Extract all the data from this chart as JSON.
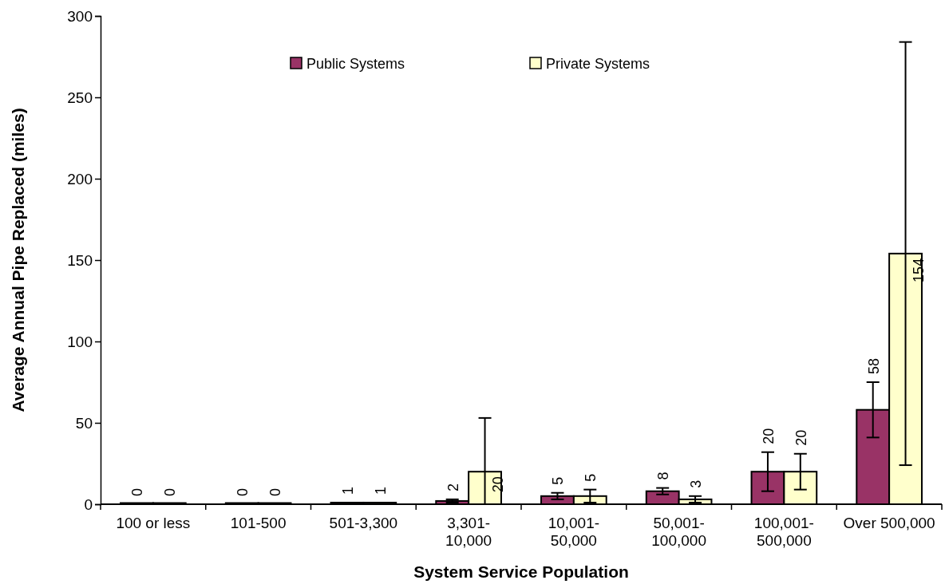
{
  "chart_data": {
    "type": "bar",
    "xlabel": "System Service Population",
    "ylabel": "Average Annual Pipe Replaced (miles)",
    "categories": [
      "100 or less",
      "101-500",
      "501-3,300",
      "3,301-10,000",
      "10,001-50,000",
      "50,001-100,000",
      "100,001-500,000",
      "Over 500,000"
    ],
    "series": [
      {
        "name": "Public Systems",
        "color": "#993366",
        "values": [
          0,
          0,
          1,
          2,
          5,
          8,
          20,
          58
        ],
        "errors": [
          null,
          null,
          null,
          1,
          2,
          2,
          12,
          17
        ]
      },
      {
        "name": "Private Systems",
        "color": "#ffffcc",
        "values": [
          0,
          0,
          1,
          20,
          5,
          3,
          20,
          154
        ],
        "errors": [
          null,
          null,
          null,
          [
            0,
            53
          ],
          4,
          2,
          11,
          130
        ]
      }
    ],
    "ylim": [
      0,
      300
    ],
    "yticks": [
      0,
      50,
      100,
      150,
      200,
      250,
      300
    ],
    "data_labels": true,
    "legend": "top",
    "grid": false
  }
}
